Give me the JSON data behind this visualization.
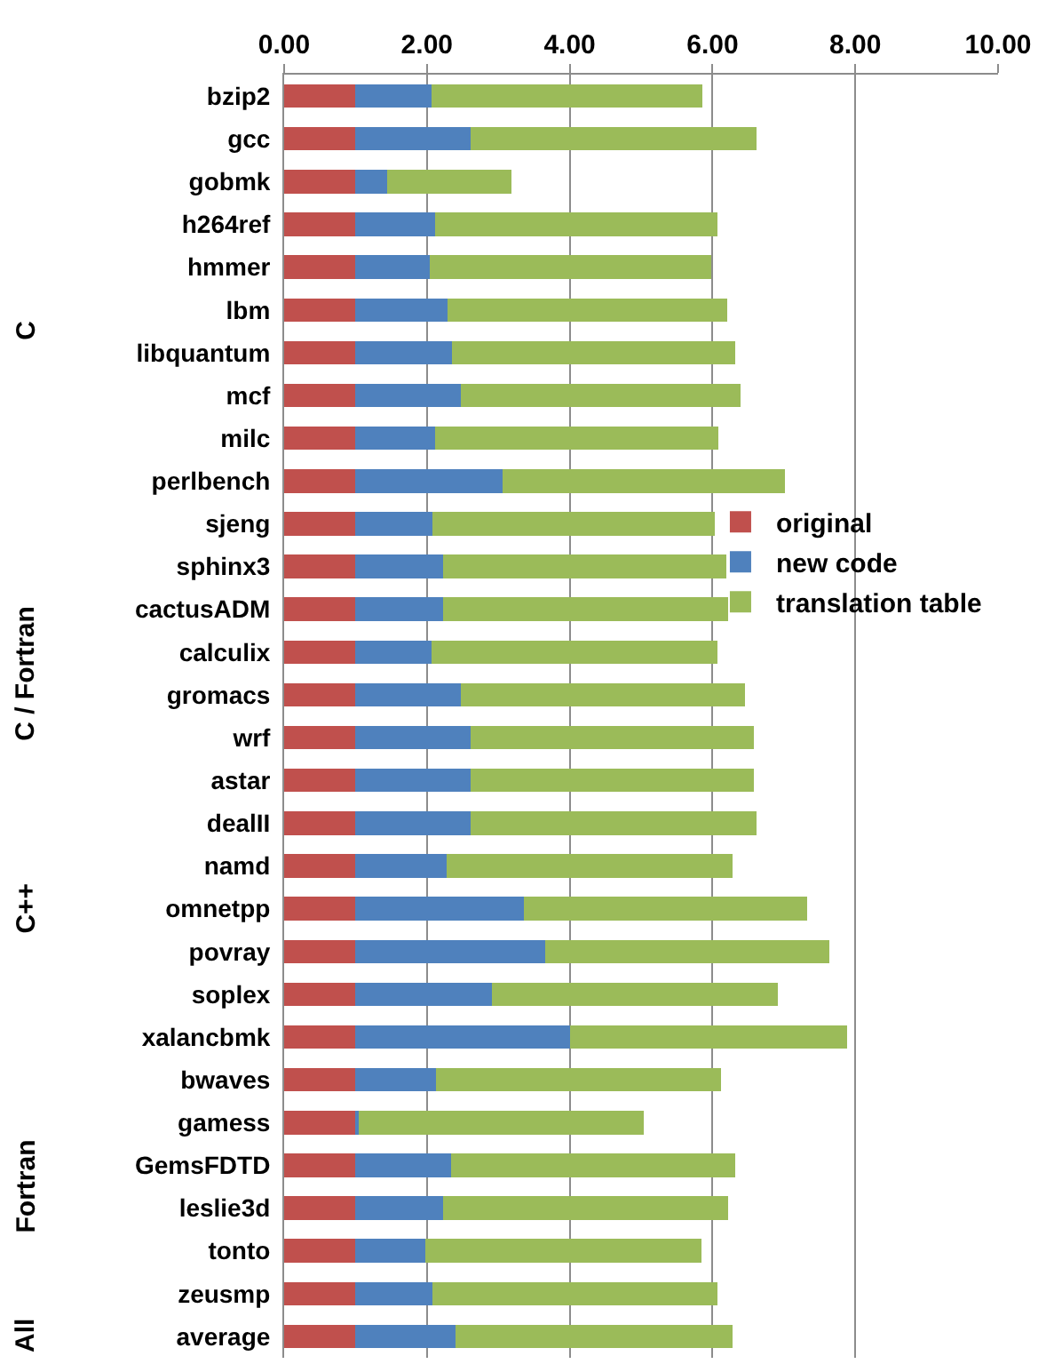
{
  "chart_data": {
    "type": "bar",
    "orientation": "horizontal",
    "stacked": true,
    "categories": [
      "bzip2",
      "gcc",
      "gobmk",
      "h264ref",
      "hmmer",
      "lbm",
      "libquantum",
      "mcf",
      "milc",
      "perlbench",
      "sjeng",
      "sphinx3",
      "cactusADM",
      "calculix",
      "gromacs",
      "wrf",
      "astar",
      "dealII",
      "namd",
      "omnetpp",
      "povray",
      "soplex",
      "xalancbmk",
      "bwaves",
      "gamess",
      "GemsFDTD",
      "leslie3d",
      "tonto",
      "zeusmp",
      "average"
    ],
    "series": [
      {
        "name": "original",
        "color": "#c0504d",
        "values": [
          1,
          1,
          1,
          1,
          1,
          1,
          1,
          1,
          1,
          1,
          1,
          1,
          1,
          1,
          1,
          1,
          1,
          1,
          1,
          1,
          1,
          1,
          1,
          1,
          1,
          1,
          1,
          1,
          1,
          1
        ]
      },
      {
        "name": "new code",
        "color": "#4f81bd",
        "values": [
          1.06,
          1.61,
          0.44,
          1.11,
          1.04,
          1.29,
          1.35,
          1.48,
          1.11,
          2.06,
          1.08,
          1.23,
          1.23,
          1.06,
          1.48,
          1.61,
          1.61,
          1.61,
          1.28,
          2.36,
          2.66,
          1.91,
          3.01,
          1.13,
          0.05,
          1.34,
          1.23,
          0.98,
          1.08,
          1.4
        ]
      },
      {
        "name": "translation table",
        "color": "#9bbb59",
        "values": [
          3.8,
          4.01,
          1.75,
          3.96,
          3.94,
          3.92,
          3.97,
          3.91,
          3.97,
          3.96,
          3.95,
          3.97,
          3.99,
          4.01,
          3.98,
          3.97,
          3.97,
          4.01,
          4.0,
          3.97,
          3.98,
          4.0,
          3.88,
          3.99,
          3.99,
          3.98,
          3.99,
          3.87,
          3.99,
          3.88
        ]
      }
    ],
    "xlim": [
      0,
      10
    ],
    "xticks": [
      {
        "value": 0,
        "label": "0.00"
      },
      {
        "value": 2,
        "label": "2.00"
      },
      {
        "value": 4,
        "label": "4.00"
      },
      {
        "value": 6,
        "label": "6.00"
      },
      {
        "value": 8,
        "label": "8.00"
      },
      {
        "value": 10,
        "label": "10.00"
      }
    ],
    "grid": "x",
    "legend": "right",
    "annotations": [
      "C",
      "C / Fortran",
      "C++",
      "Fortran",
      "All"
    ]
  }
}
